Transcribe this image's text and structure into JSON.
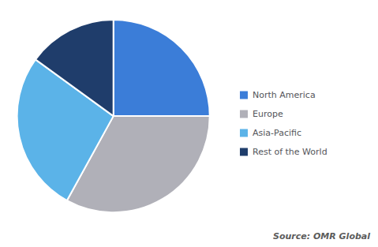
{
  "chart_data": {
    "type": "pie",
    "categories": [
      "North America",
      "Europe",
      "Asia-Pacific",
      "Rest of the World"
    ],
    "values": [
      25,
      33,
      27,
      15
    ],
    "colors": [
      "#3B7DD8",
      "#B0B0B8",
      "#5BB3E8",
      "#1F3D6B"
    ],
    "legend": "right",
    "annotations": [
      "Source: OMR Global"
    ]
  }
}
